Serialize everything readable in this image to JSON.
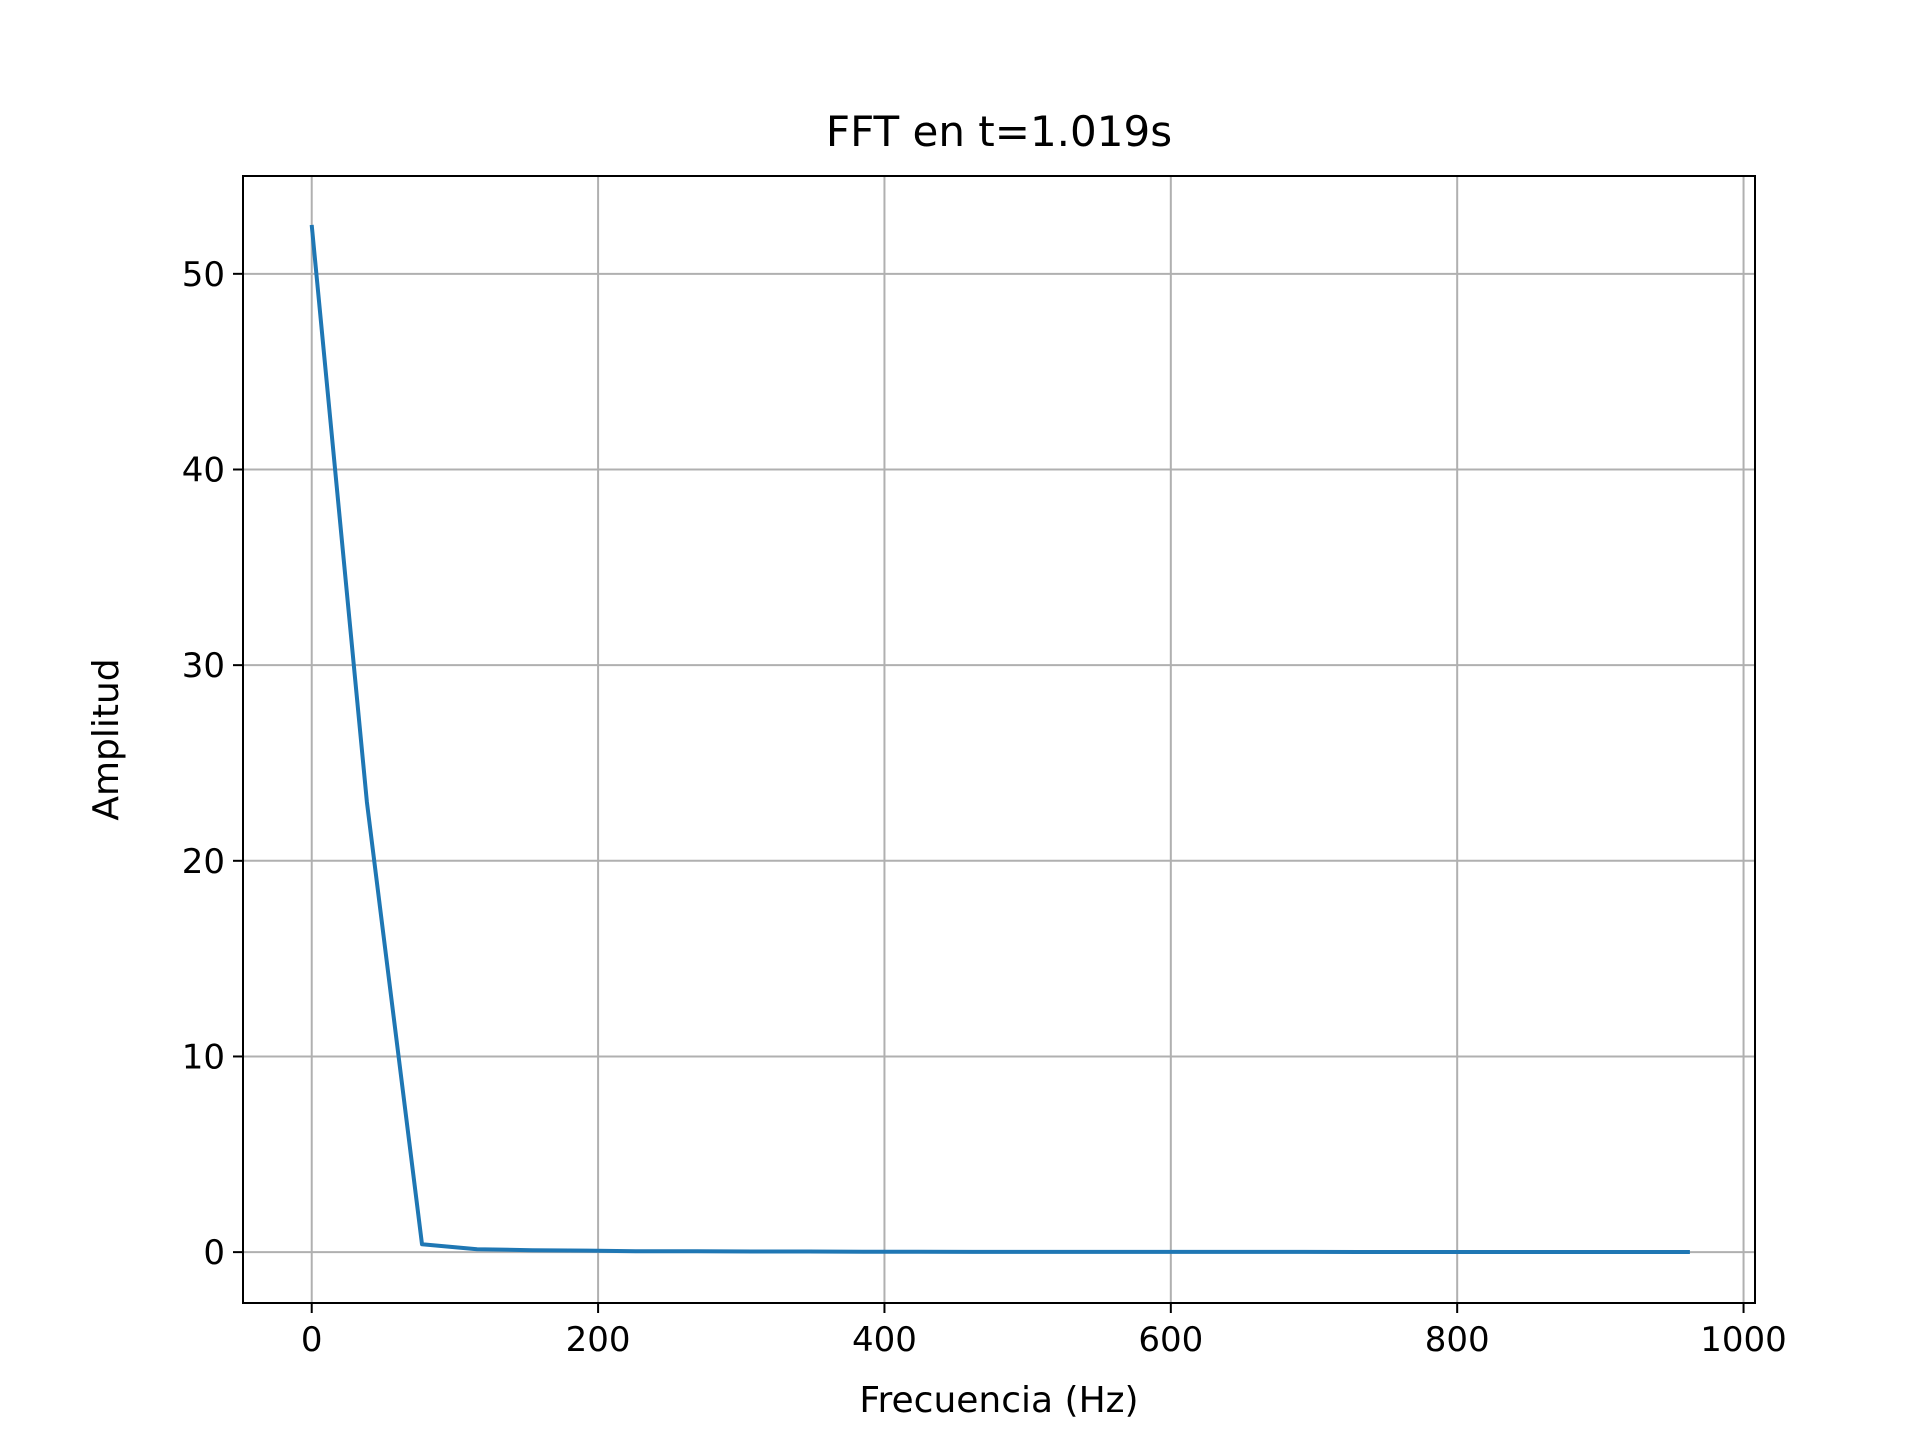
{
  "chart_data": {
    "type": "line",
    "title": "FFT en t=1.019s",
    "xlabel": "Frecuencia (Hz)",
    "ylabel": "Amplitud",
    "xlim": [
      -48,
      1008
    ],
    "ylim": [
      -2.6,
      55
    ],
    "xticks": [
      0,
      200,
      400,
      600,
      800,
      1000
    ],
    "yticks": [
      0,
      10,
      20,
      30,
      40,
      50
    ],
    "grid": true,
    "series": [
      {
        "color": "#1f77b4",
        "x": [
          0,
          38.5,
          77,
          115.5,
          154,
          192.5,
          231,
          269.5,
          308,
          346.5,
          385,
          423.5,
          462,
          500.5,
          539,
          577.5,
          616,
          654.5,
          693,
          731.5,
          770,
          808.5,
          847,
          885.5,
          924,
          962.5
        ],
        "y": [
          52.5,
          23.0,
          0.4,
          0.15,
          0.1,
          0.08,
          0.04,
          0.05,
          0.03,
          0.03,
          0.02,
          0.02,
          0.01,
          0.01,
          0.01,
          0.01,
          0.01,
          0.01,
          0.01,
          0.005,
          0.005,
          0.005,
          0.005,
          0.005,
          0.005,
          0.005
        ]
      }
    ]
  }
}
